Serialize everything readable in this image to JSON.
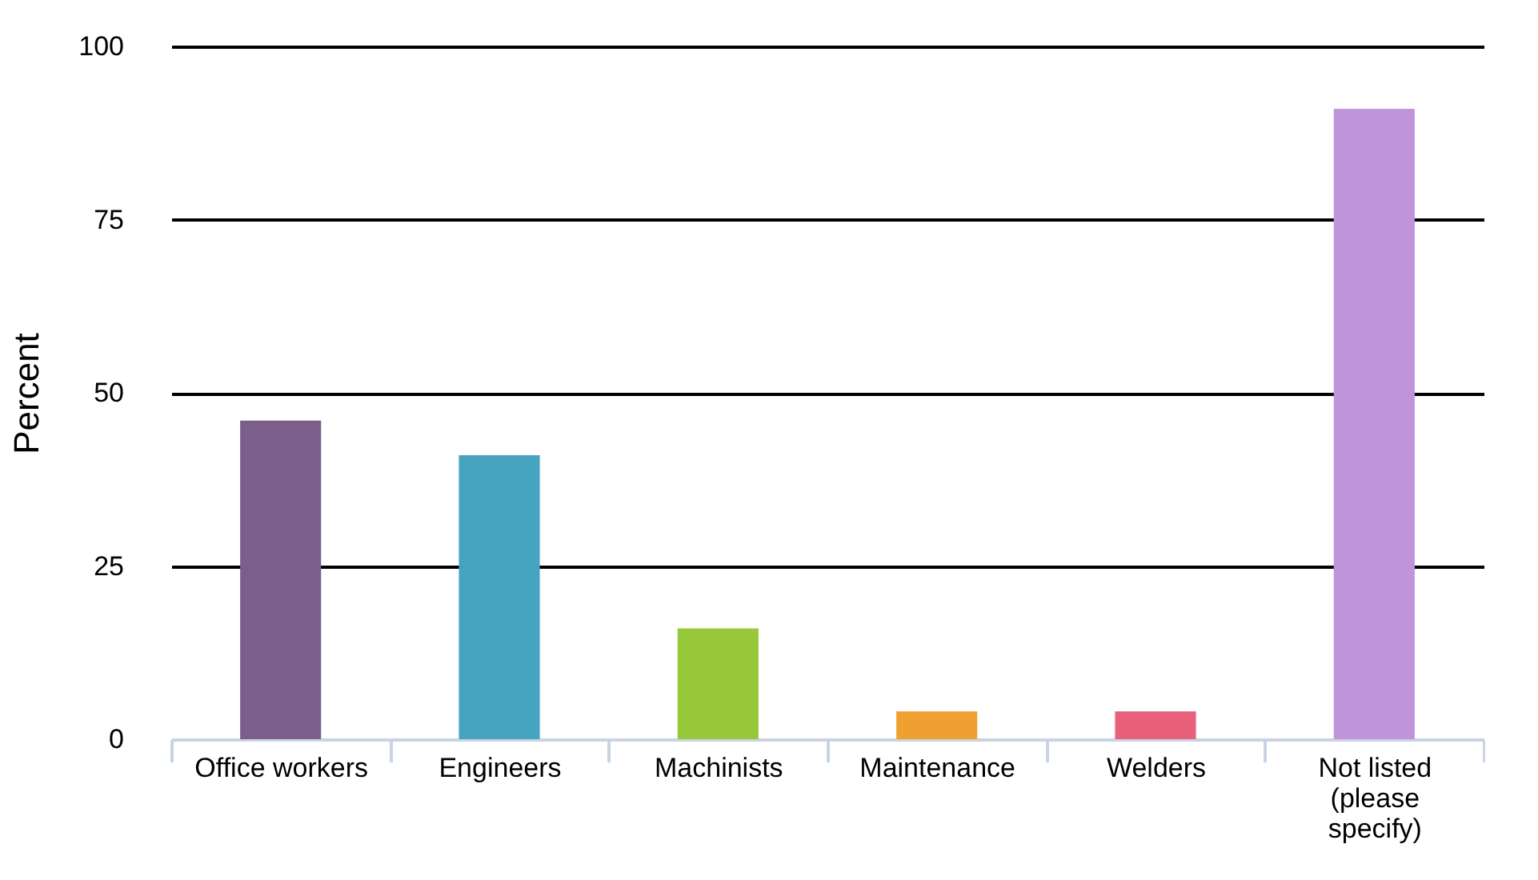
{
  "chart_data": {
    "type": "bar",
    "ylabel": "Percent",
    "categories": [
      "Office workers",
      "Engineers",
      "Machinists",
      "Maintenance",
      "Welders",
      "Not listed (please specify)"
    ],
    "values": [
      46,
      41,
      16,
      4,
      4,
      91
    ],
    "colors": [
      "#7b5f8a",
      "#46a4c0",
      "#96c83a",
      "#f0a030",
      "#e8607a",
      "#bf94da"
    ],
    "ylim": [
      0,
      100
    ],
    "yticks": [
      0,
      25,
      50,
      75,
      100
    ],
    "grid": "y"
  }
}
